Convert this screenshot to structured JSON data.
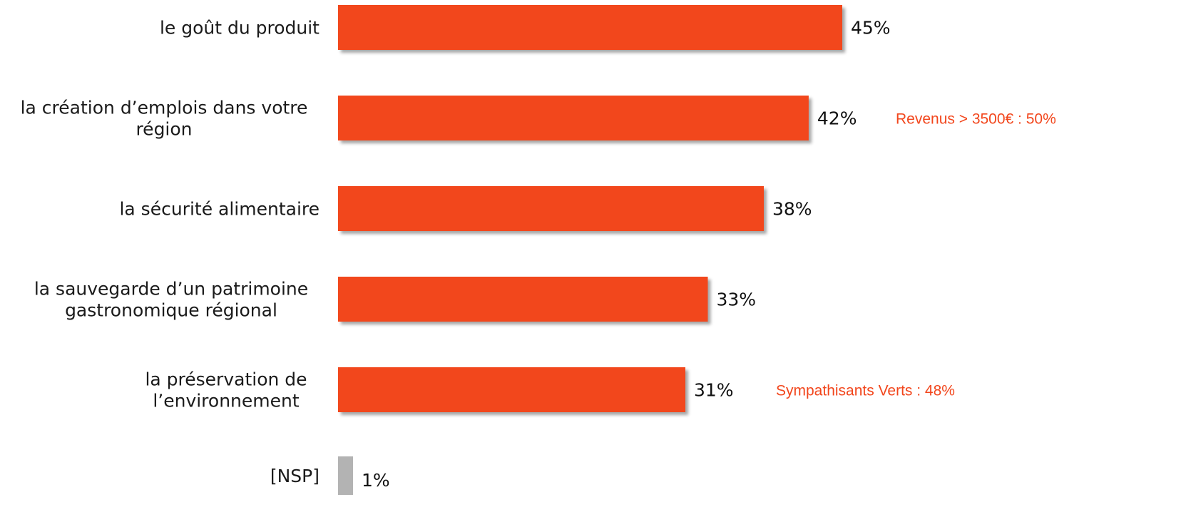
{
  "chart_data": {
    "type": "bar",
    "orientation": "horizontal",
    "categories": [
      [
        "le goût du produit"
      ],
      [
        "la création d’emplois dans votre",
        "région"
      ],
      [
        "la sécurité alimentaire"
      ],
      [
        "la sauvegarde d’un patrimoine",
        "gastronomique régional"
      ],
      [
        "la préservation de",
        "l’environnement"
      ],
      [
        "[NSP]"
      ]
    ],
    "values": [
      45,
      42,
      38,
      33,
      31,
      1
    ],
    "value_labels": [
      "45%",
      "42%",
      "38%",
      "33%",
      "31%",
      "1%"
    ],
    "bar_colors": [
      "#F2461C",
      "#F2461C",
      "#F2461C",
      "#F2461C",
      "#F2461C",
      "#B3B3B3"
    ],
    "annotations": [
      {
        "row": 1,
        "text": "Revenus > 3500€ : 50%"
      },
      {
        "row": 4,
        "text": "Sympathisants Verts : 48%"
      }
    ],
    "annotation_color": "#F2461C",
    "xlim": [
      0,
      45
    ],
    "grid": false,
    "legend": "none"
  }
}
